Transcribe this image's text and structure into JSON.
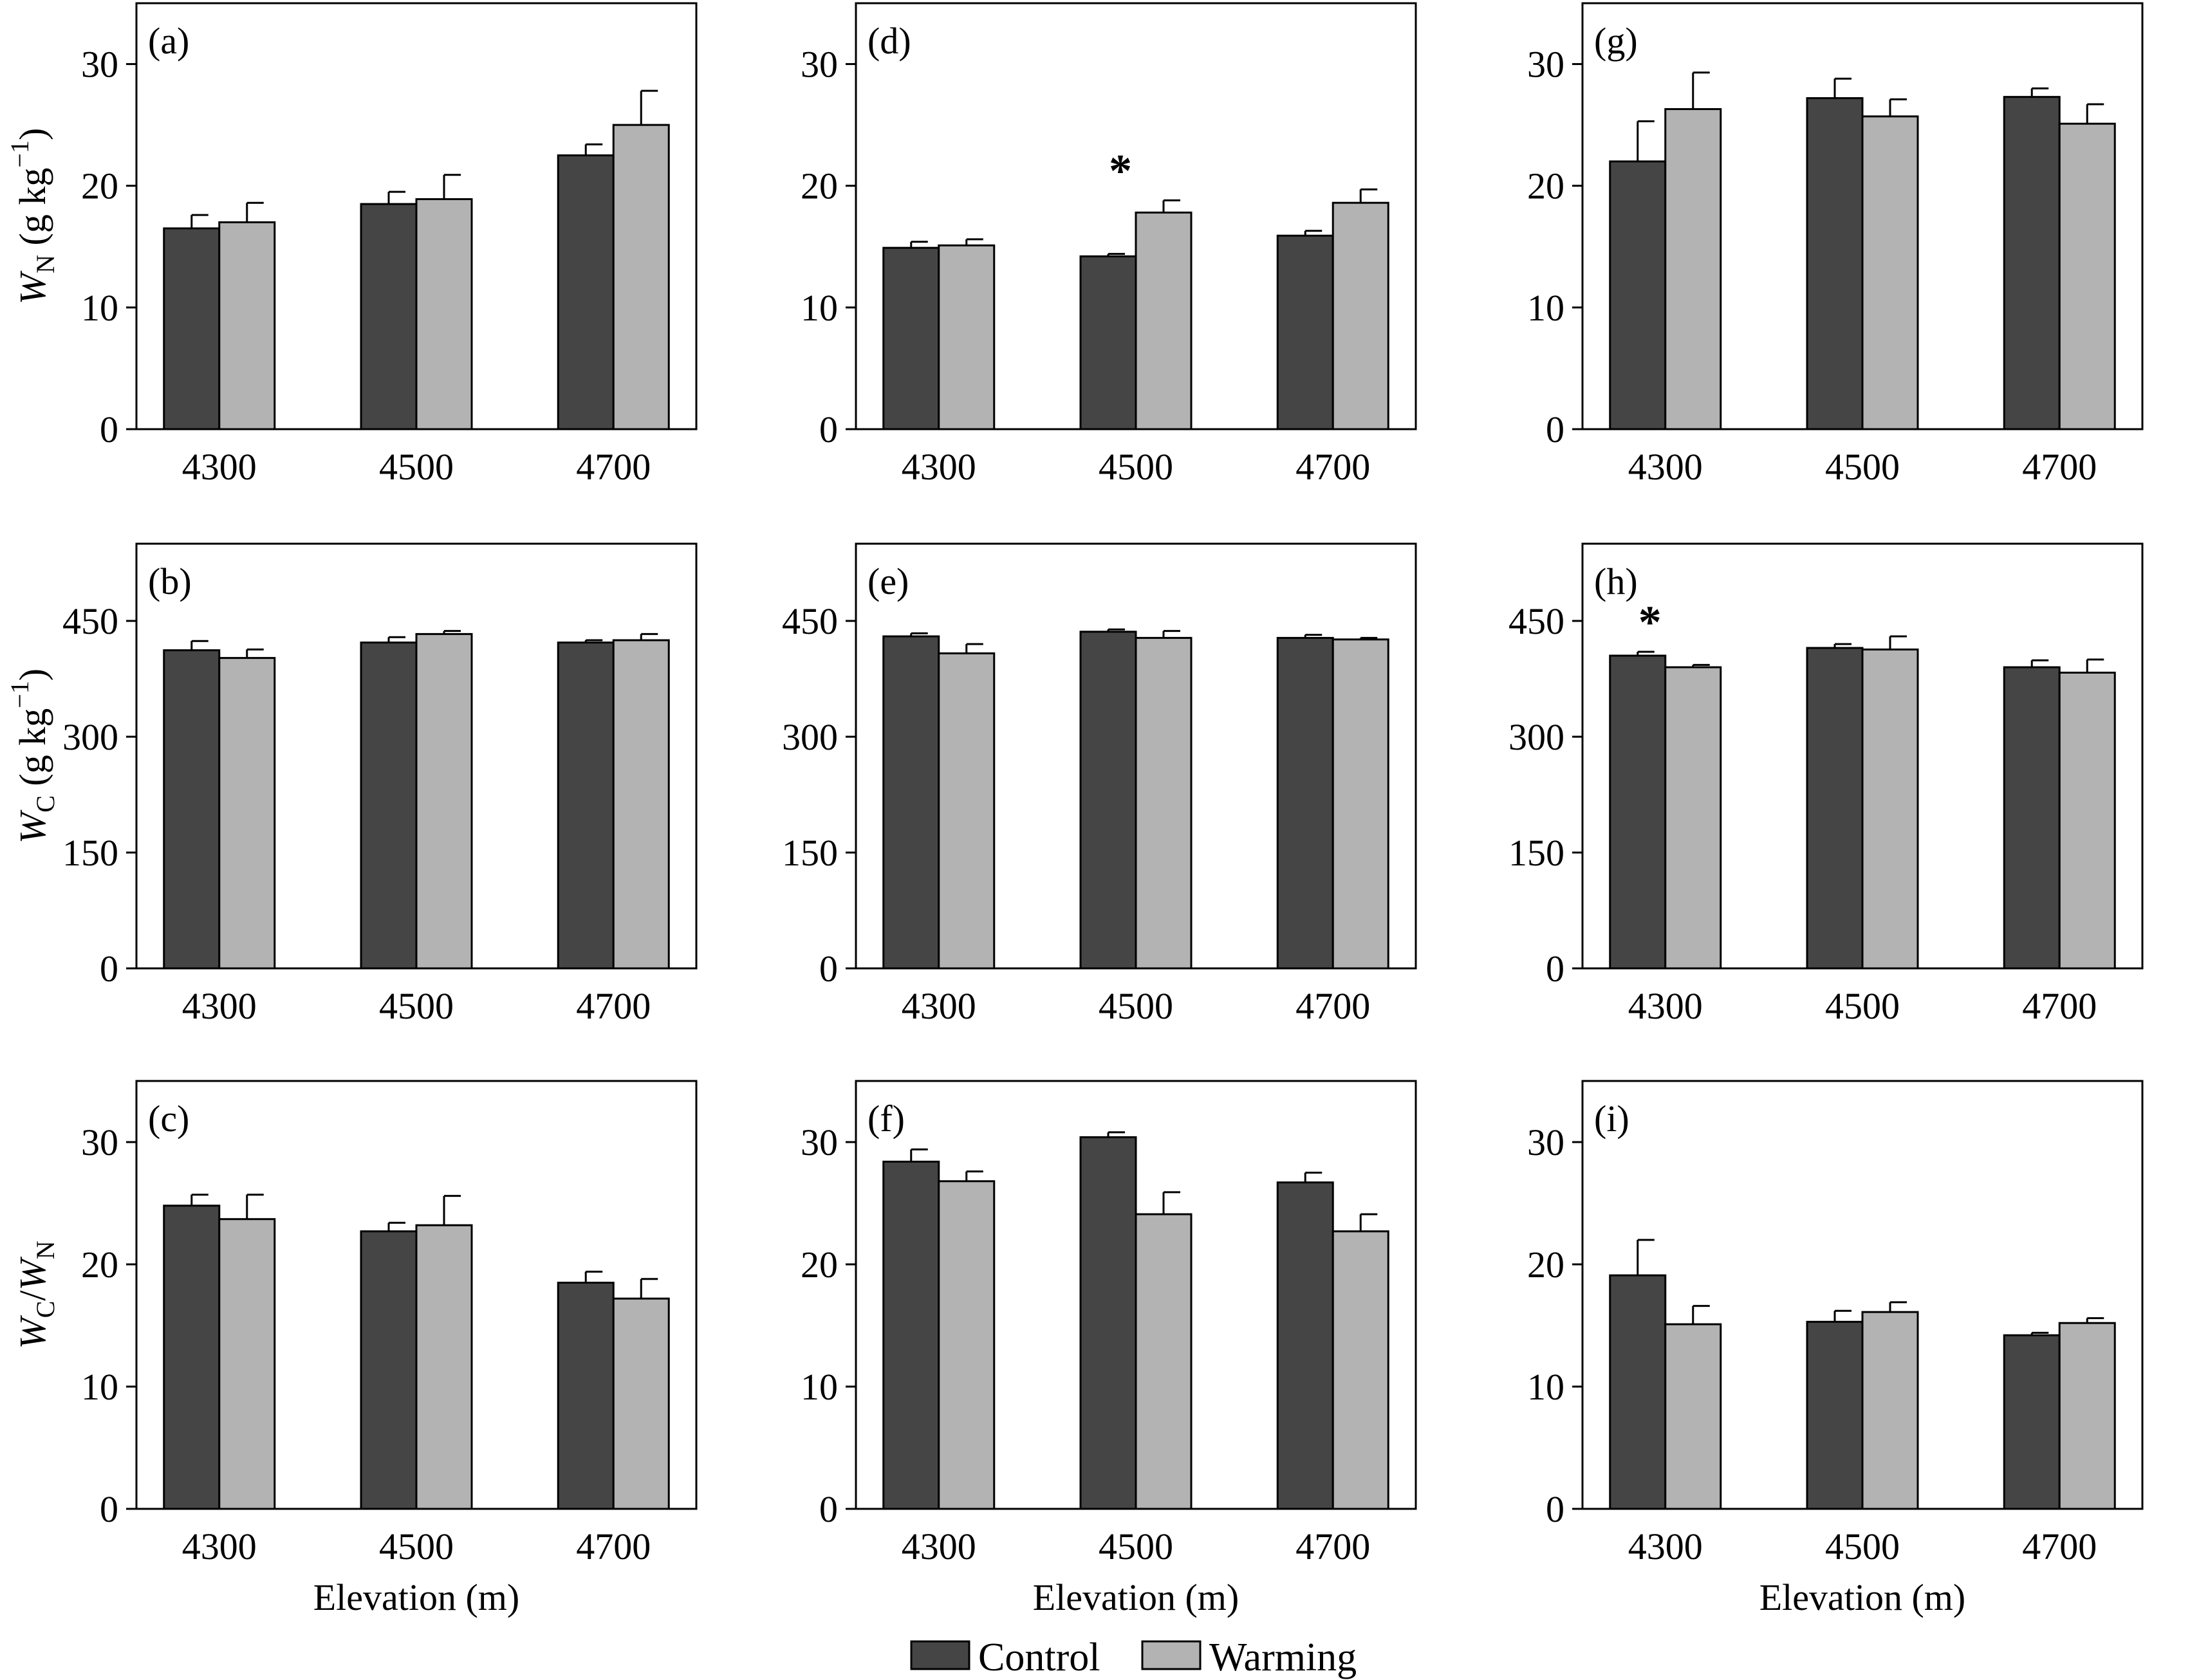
{
  "colors": {
    "control": "#454545",
    "warming": "#b3b3b3",
    "axis": "#000000"
  },
  "legend": [
    {
      "key": "control",
      "label": "Control"
    },
    {
      "key": "warming",
      "label": "Warming"
    }
  ],
  "row_labels": [
    {
      "var": "W",
      "sub": "N",
      "unit": " (g kg",
      "sup": "−1",
      "close": ")"
    },
    {
      "var": "W",
      "sub": "C",
      "unit": " (g kg",
      "sup": "−1",
      "close": ")"
    },
    {
      "ratio": true,
      "var1": "W",
      "sub1": "C",
      "slash": "/",
      "var2": "W",
      "sub2": "N"
    }
  ],
  "chart_data": [
    {
      "label": "(a)",
      "type": "bar",
      "categories": [
        "4300",
        "4500",
        "4700"
      ],
      "ylim": [
        0,
        35
      ],
      "yticks": [
        0,
        10,
        20,
        30
      ],
      "series": [
        {
          "name": "Control",
          "values": [
            16.5,
            18.5,
            22.5
          ],
          "errors": [
            1.1,
            1.0,
            0.9
          ]
        },
        {
          "name": "Warming",
          "values": [
            17.0,
            18.9,
            25.0
          ],
          "errors": [
            1.6,
            2.0,
            2.8
          ]
        }
      ],
      "annotations": [],
      "xlabel": ""
    },
    {
      "label": "(b)",
      "type": "bar",
      "categories": [
        "4300",
        "4500",
        "4700"
      ],
      "ylim": [
        0,
        550
      ],
      "yticks": [
        0,
        150,
        300,
        450
      ],
      "series": [
        {
          "name": "Control",
          "values": [
            412,
            422,
            422
          ],
          "errors": [
            12,
            7,
            3
          ]
        },
        {
          "name": "Warming",
          "values": [
            402,
            433,
            425
          ],
          "errors": [
            11,
            4,
            8
          ]
        }
      ],
      "annotations": [],
      "xlabel": ""
    },
    {
      "label": "(c)",
      "type": "bar",
      "categories": [
        "4300",
        "4500",
        "4700"
      ],
      "ylim": [
        0,
        35
      ],
      "yticks": [
        0,
        10,
        20,
        30
      ],
      "series": [
        {
          "name": "Control",
          "values": [
            24.8,
            22.7,
            18.5
          ],
          "errors": [
            0.9,
            0.7,
            0.9
          ]
        },
        {
          "name": "Warming",
          "values": [
            23.7,
            23.2,
            17.2
          ],
          "errors": [
            2.0,
            2.4,
            1.6
          ]
        }
      ],
      "annotations": [],
      "xlabel": "Elevation (m)"
    },
    {
      "label": "(d)",
      "type": "bar",
      "categories": [
        "4300",
        "4500",
        "4700"
      ],
      "ylim": [
        0,
        35
      ],
      "yticks": [
        0,
        10,
        20,
        30
      ],
      "series": [
        {
          "name": "Control",
          "values": [
            14.9,
            14.2,
            15.9
          ],
          "errors": [
            0.5,
            0.2,
            0.4
          ]
        },
        {
          "name": "Warming",
          "values": [
            15.1,
            17.8,
            18.6
          ],
          "errors": [
            0.5,
            1.0,
            1.1
          ]
        }
      ],
      "annotations": [
        {
          "category": 1,
          "text": "*"
        }
      ],
      "xlabel": ""
    },
    {
      "label": "(e)",
      "type": "bar",
      "categories": [
        "4300",
        "4500",
        "4700"
      ],
      "ylim": [
        0,
        550
      ],
      "yticks": [
        0,
        150,
        300,
        450
      ],
      "series": [
        {
          "name": "Control",
          "values": [
            430,
            436,
            428
          ],
          "errors": [
            4,
            3,
            4
          ]
        },
        {
          "name": "Warming",
          "values": [
            408,
            428,
            426
          ],
          "errors": [
            12,
            9,
            2
          ]
        }
      ],
      "annotations": [],
      "xlabel": ""
    },
    {
      "label": "(f)",
      "type": "bar",
      "categories": [
        "4300",
        "4500",
        "4700"
      ],
      "ylim": [
        0,
        35
      ],
      "yticks": [
        0,
        10,
        20,
        30
      ],
      "series": [
        {
          "name": "Control",
          "values": [
            28.4,
            30.4,
            26.7
          ],
          "errors": [
            1.0,
            0.4,
            0.8
          ]
        },
        {
          "name": "Warming",
          "values": [
            26.8,
            24.1,
            22.7
          ],
          "errors": [
            0.8,
            1.8,
            1.4
          ]
        }
      ],
      "annotations": [],
      "xlabel": "Elevation (m)"
    },
    {
      "label": "(g)",
      "type": "bar",
      "categories": [
        "4300",
        "4500",
        "4700"
      ],
      "ylim": [
        0,
        35
      ],
      "yticks": [
        0,
        10,
        20,
        30
      ],
      "series": [
        {
          "name": "Control",
          "values": [
            22.0,
            27.2,
            27.3
          ],
          "errors": [
            3.3,
            1.6,
            0.7
          ]
        },
        {
          "name": "Warming",
          "values": [
            26.3,
            25.7,
            25.1
          ],
          "errors": [
            3.0,
            1.4,
            1.6
          ]
        }
      ],
      "annotations": [],
      "xlabel": ""
    },
    {
      "label": "(h)",
      "type": "bar",
      "categories": [
        "4300",
        "4500",
        "4700"
      ],
      "ylim": [
        0,
        550
      ],
      "yticks": [
        0,
        150,
        300,
        450
      ],
      "series": [
        {
          "name": "Control",
          "values": [
            405,
            415,
            390
          ],
          "errors": [
            5,
            5,
            9
          ]
        },
        {
          "name": "Warming",
          "values": [
            390,
            413,
            383
          ],
          "errors": [
            3,
            17,
            17
          ]
        }
      ],
      "annotations": [
        {
          "category": 0,
          "text": "*"
        }
      ],
      "xlabel": ""
    },
    {
      "label": "(i)",
      "type": "bar",
      "categories": [
        "4300",
        "4500",
        "4700"
      ],
      "ylim": [
        0,
        35
      ],
      "yticks": [
        0,
        10,
        20,
        30
      ],
      "series": [
        {
          "name": "Control",
          "values": [
            19.1,
            15.3,
            14.2
          ],
          "errors": [
            2.9,
            0.9,
            0.2
          ]
        },
        {
          "name": "Warming",
          "values": [
            15.1,
            16.1,
            15.2
          ],
          "errors": [
            1.5,
            0.8,
            0.4
          ]
        }
      ],
      "annotations": [],
      "xlabel": "Elevation (m)"
    }
  ]
}
